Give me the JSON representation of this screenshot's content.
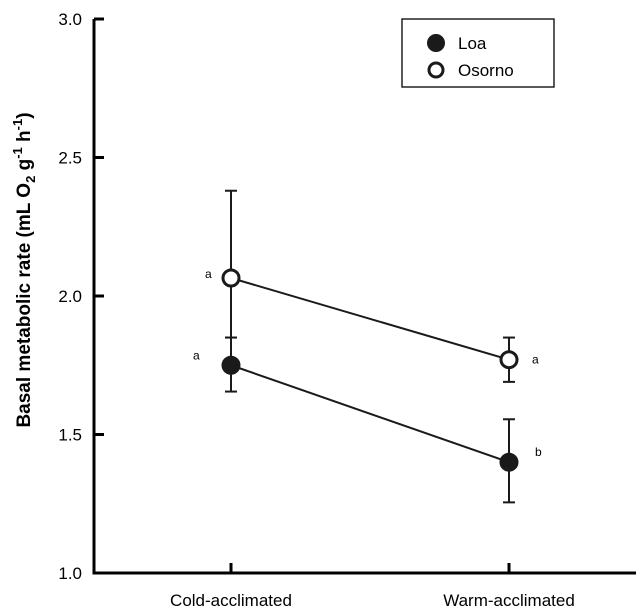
{
  "chart_data": {
    "type": "line",
    "title": "",
    "xlabel": "",
    "ylabel": {
      "parts": [
        "Basal metabolic rate (mL O",
        "2",
        " g",
        "-1",
        " h",
        "-1",
        ")"
      ]
    },
    "categories": [
      "Cold-acclimated",
      "Warm-acclimated"
    ],
    "yticks": [
      "1.0",
      "1.5",
      "2.0",
      "2.5",
      "3.0"
    ],
    "ylim": [
      1.0,
      3.0
    ],
    "legend_position": "top-right",
    "grid": false,
    "series": [
      {
        "name": "Loa",
        "marker": "filled-circle",
        "color": "#1a1a1a",
        "values": [
          1.75,
          1.4
        ],
        "error_upper": [
          1.85,
          1.555
        ],
        "error_lower": [
          1.655,
          1.255
        ],
        "significance": [
          "a",
          "b"
        ]
      },
      {
        "name": "Osorno",
        "marker": "open-circle",
        "color": "#1a1a1a",
        "values": [
          2.065,
          1.77
        ],
        "error_upper": [
          2.38,
          1.85
        ],
        "error_lower": [
          1.85,
          1.69
        ],
        "significance": [
          "a",
          "a"
        ]
      }
    ]
  }
}
